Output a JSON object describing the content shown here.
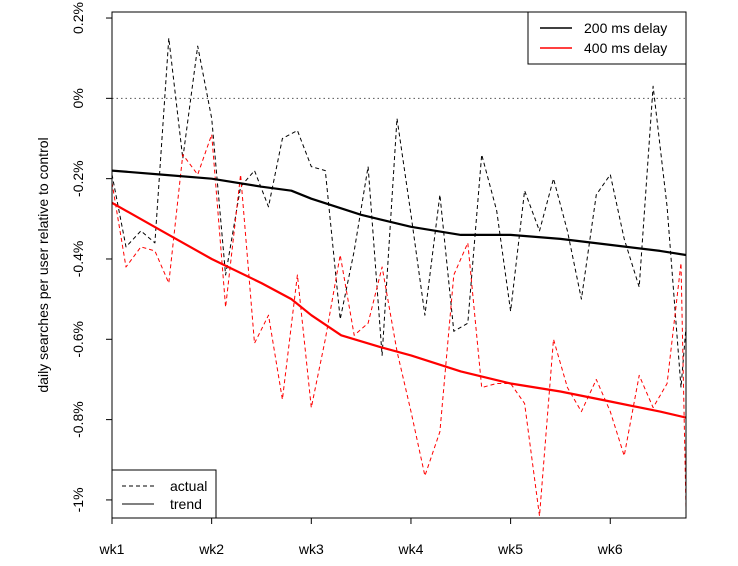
{
  "chart_data": {
    "type": "line",
    "title": "",
    "xlabel": "",
    "ylabel": "daily searches per user relative to control",
    "categories": [
      "wk1",
      "wk2",
      "wk3",
      "wk4",
      "wk5",
      "wk6"
    ],
    "xlim": [
      1,
      6.76
    ],
    "ylim": [
      -1.045,
      0.215
    ],
    "y_ticks": [
      0.2,
      0,
      -0.2,
      -0.4,
      -0.6,
      -0.8,
      -1.0
    ],
    "y_tick_labels": [
      "0.2%",
      "0%",
      "-0.2%",
      "-0.4%",
      "-0.6%",
      "-0.8%",
      "-1%"
    ],
    "reference_line": {
      "y": 0,
      "style": "dotted"
    },
    "grid": false,
    "color_legend": {
      "position": "top-right",
      "entries": [
        {
          "label": "200 ms delay",
          "color": "#000000"
        },
        {
          "label": "400 ms delay",
          "color": "#ff0000"
        }
      ]
    },
    "style_legend": {
      "position": "bottom-left",
      "entries": [
        {
          "label": "actual",
          "dash": "dashed"
        },
        {
          "label": "trend",
          "dash": "solid"
        }
      ]
    },
    "series": [
      {
        "name": "200 ms delay",
        "kind": "actual",
        "color": "#000000",
        "x": [
          1.0,
          1.14,
          1.29,
          1.43,
          1.57,
          1.71,
          1.86,
          2.0,
          2.14,
          2.29,
          2.43,
          2.57,
          2.71,
          2.86,
          3.0,
          3.14,
          3.29,
          3.43,
          3.57,
          3.71,
          3.86,
          4.0,
          4.14,
          4.29,
          4.43,
          4.57,
          4.71,
          4.86,
          5.0,
          5.14,
          5.29,
          5.43,
          5.57,
          5.71,
          5.86,
          6.0,
          6.14,
          6.29,
          6.43,
          6.57,
          6.71,
          6.76
        ],
        "y": [
          -0.19,
          -0.37,
          -0.33,
          -0.36,
          0.15,
          -0.15,
          0.13,
          -0.05,
          -0.44,
          -0.22,
          -0.18,
          -0.27,
          -0.1,
          -0.08,
          -0.17,
          -0.18,
          -0.55,
          -0.38,
          -0.17,
          -0.64,
          -0.05,
          -0.29,
          -0.54,
          -0.24,
          -0.58,
          -0.56,
          -0.14,
          -0.28,
          -0.53,
          -0.23,
          -0.33,
          -0.2,
          -0.33,
          -0.5,
          -0.24,
          -0.19,
          -0.35,
          -0.47,
          0.03,
          -0.27,
          -0.72,
          -0.57
        ]
      },
      {
        "name": "400 ms delay",
        "kind": "actual",
        "color": "#ff0000",
        "x": [
          1.0,
          1.14,
          1.29,
          1.43,
          1.57,
          1.71,
          1.86,
          2.0,
          2.14,
          2.29,
          2.43,
          2.57,
          2.71,
          2.86,
          3.0,
          3.14,
          3.29,
          3.43,
          3.57,
          3.71,
          3.86,
          4.0,
          4.14,
          4.29,
          4.43,
          4.57,
          4.71,
          4.86,
          5.0,
          5.14,
          5.29,
          5.43,
          5.57,
          5.71,
          5.86,
          6.0,
          6.14,
          6.29,
          6.43,
          6.57,
          6.71,
          6.76
        ],
        "y": [
          -0.21,
          -0.42,
          -0.37,
          -0.38,
          -0.46,
          -0.14,
          -0.19,
          -0.09,
          -0.52,
          -0.19,
          -0.61,
          -0.54,
          -0.75,
          -0.44,
          -0.77,
          -0.6,
          -0.39,
          -0.59,
          -0.56,
          -0.42,
          -0.63,
          -0.78,
          -0.94,
          -0.83,
          -0.44,
          -0.36,
          -0.72,
          -0.71,
          -0.71,
          -0.76,
          -1.04,
          -0.6,
          -0.72,
          -0.78,
          -0.7,
          -0.78,
          -0.89,
          -0.69,
          -0.77,
          -0.71,
          -0.41,
          -1.02
        ]
      },
      {
        "name": "200 ms delay",
        "kind": "trend",
        "color": "#000000",
        "x": [
          1.0,
          1.5,
          2.0,
          2.5,
          2.8,
          3.0,
          3.5,
          4.0,
          4.5,
          5.0,
          5.5,
          6.0,
          6.5,
          6.76
        ],
        "y": [
          -0.18,
          -0.19,
          -0.2,
          -0.22,
          -0.23,
          -0.25,
          -0.29,
          -0.32,
          -0.34,
          -0.34,
          -0.35,
          -0.365,
          -0.38,
          -0.39
        ]
      },
      {
        "name": "400 ms delay",
        "kind": "trend",
        "color": "#ff0000",
        "x": [
          1.0,
          1.5,
          2.0,
          2.5,
          2.8,
          3.0,
          3.3,
          3.7,
          4.0,
          4.5,
          5.0,
          5.5,
          6.0,
          6.5,
          6.76
        ],
        "y": [
          -0.26,
          -0.33,
          -0.4,
          -0.46,
          -0.5,
          -0.54,
          -0.59,
          -0.62,
          -0.64,
          -0.68,
          -0.71,
          -0.73,
          -0.755,
          -0.78,
          -0.795
        ]
      }
    ]
  }
}
